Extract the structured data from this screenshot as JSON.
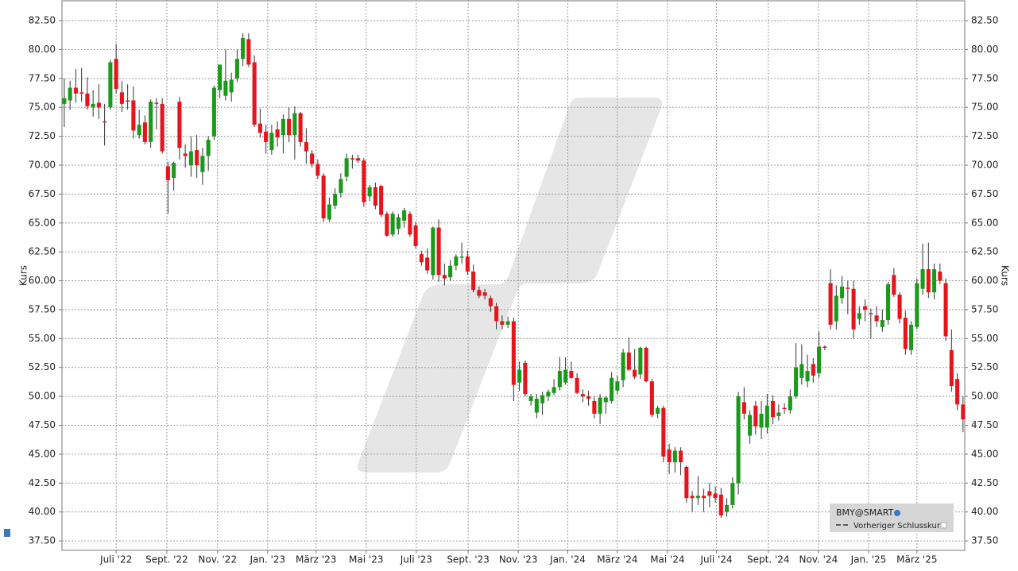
{
  "chart_data": {
    "type": "candlestick",
    "y_axis_label": "Kurs",
    "legend": [
      "BMY@SMART",
      "Vorheriger Schlusskurs"
    ],
    "up_color": "#1a9a1a",
    "down_color": "#e8141c",
    "grid": true,
    "xlim": [
      -0.4,
      156.3
    ],
    "ylim": [
      36.68,
      84.29
    ],
    "xticks": [
      {
        "value": 9.0,
        "label": "Juli '22"
      },
      {
        "value": 17.8,
        "label": "Sept. '22"
      },
      {
        "value": 26.6,
        "label": "Nov. '22"
      },
      {
        "value": 35.3,
        "label": "Jan. '23"
      },
      {
        "value": 43.7,
        "label": "März '23"
      },
      {
        "value": 52.4,
        "label": "Mai '23"
      },
      {
        "value": 61.1,
        "label": "Juli '23"
      },
      {
        "value": 70.1,
        "label": "Sept. '23"
      },
      {
        "value": 78.8,
        "label": "Nov. '23"
      },
      {
        "value": 87.4,
        "label": "Jan. '24"
      },
      {
        "value": 96.0,
        "label": "März '24"
      },
      {
        "value": 104.7,
        "label": "Mai '24"
      },
      {
        "value": 113.2,
        "label": "Juli '24"
      },
      {
        "value": 122.2,
        "label": "Sept. '24"
      },
      {
        "value": 130.9,
        "label": "Nov. '24"
      },
      {
        "value": 139.6,
        "label": "Jan. '25"
      },
      {
        "value": 148.0,
        "label": "März '25"
      }
    ],
    "yticks": [
      {
        "value": 37.5,
        "label": "37.50"
      },
      {
        "value": 40,
        "label": "40.00"
      },
      {
        "value": 42.5,
        "label": "42.50"
      },
      {
        "value": 45,
        "label": "45.00"
      },
      {
        "value": 47.5,
        "label": "47.50"
      },
      {
        "value": 50,
        "label": "50.00"
      },
      {
        "value": 52.5,
        "label": "52.50"
      },
      {
        "value": 55,
        "label": "55.00"
      },
      {
        "value": 57.5,
        "label": "57.50"
      },
      {
        "value": 60,
        "label": "60.00"
      },
      {
        "value": 62.5,
        "label": "62.50"
      },
      {
        "value": 65,
        "label": "65.00"
      },
      {
        "value": 67.5,
        "label": "67.50"
      },
      {
        "value": 70,
        "label": "70.00"
      },
      {
        "value": 72.5,
        "label": "72.50"
      },
      {
        "value": 75,
        "label": "75.00"
      },
      {
        "value": 77.5,
        "label": "77.50"
      },
      {
        "value": 80,
        "label": "80.00"
      },
      {
        "value": 82.5,
        "label": "82.50"
      }
    ],
    "candles": [
      [
        75.3,
        77.5,
        73.3,
        75.8
      ],
      [
        75.6,
        77.3,
        74.8,
        76.7
      ],
      [
        76.7,
        78.3,
        75.4,
        76.2
      ],
      [
        76.3,
        78.4,
        75.5,
        76.2
      ],
      [
        76.2,
        77.6,
        74.8,
        75.1
      ],
      [
        75.0,
        76.5,
        74.2,
        75.3
      ],
      [
        75.4,
        77.0,
        74.0,
        75.0
      ],
      [
        73.8,
        75.3,
        71.7,
        73.7
      ],
      [
        75.0,
        79.1,
        74.8,
        78.9
      ],
      [
        79.2,
        80.5,
        76.2,
        76.6
      ],
      [
        76.3,
        77.3,
        74.6,
        75.3
      ],
      [
        75.6,
        77.0,
        74.8,
        75.5
      ],
      [
        75.6,
        76.8,
        72.3,
        73.0
      ],
      [
        72.6,
        74.8,
        72.3,
        73.5
      ],
      [
        73.7,
        74.3,
        71.8,
        72.0
      ],
      [
        72.0,
        75.7,
        71.5,
        75.5
      ],
      [
        75.4,
        75.8,
        73.1,
        75.3
      ],
      [
        75.3,
        75.8,
        71.0,
        71.2
      ],
      [
        69.9,
        70.3,
        65.8,
        68.7
      ],
      [
        68.9,
        70.3,
        67.8,
        70.2
      ],
      [
        75.5,
        75.9,
        70.5,
        71.5
      ],
      [
        71.0,
        71.8,
        69.8,
        70.8
      ],
      [
        70.0,
        72.5,
        69.0,
        71.2
      ],
      [
        71.3,
        72.6,
        68.9,
        70.0
      ],
      [
        69.4,
        71.5,
        68.3,
        70.8
      ],
      [
        70.8,
        72.5,
        69.5,
        72.2
      ],
      [
        72.5,
        76.9,
        72.2,
        76.7
      ],
      [
        76.5,
        78.7,
        75.8,
        78.7
      ],
      [
        76.0,
        80.0,
        75.6,
        77.3
      ],
      [
        76.3,
        78.0,
        75.5,
        77.4
      ],
      [
        77.5,
        80.0,
        77.2,
        79.2
      ],
      [
        79.2,
        81.4,
        78.6,
        81.0
      ],
      [
        80.9,
        81.4,
        78.5,
        78.7
      ],
      [
        78.9,
        79.5,
        73.3,
        73.5
      ],
      [
        73.6,
        74.9,
        72.4,
        72.8
      ],
      [
        72.9,
        73.5,
        71.0,
        72.0
      ],
      [
        71.3,
        73.5,
        70.9,
        72.8
      ],
      [
        73.1,
        73.8,
        71.6,
        72.4
      ],
      [
        72.6,
        74.4,
        71.0,
        74.0
      ],
      [
        74.0,
        75.0,
        72.0,
        72.6
      ],
      [
        72.6,
        75.1,
        70.5,
        74.5
      ],
      [
        74.5,
        74.6,
        71.6,
        72.0
      ],
      [
        72.0,
        73.2,
        70.1,
        71.2
      ],
      [
        71.0,
        71.3,
        69.8,
        70.1
      ],
      [
        70.1,
        70.5,
        68.8,
        69.1
      ],
      [
        69.1,
        69.3,
        65.1,
        65.4
      ],
      [
        65.3,
        67.2,
        65.1,
        66.6
      ],
      [
        66.5,
        68.0,
        66.2,
        67.5
      ],
      [
        67.6,
        69.3,
        67.2,
        68.8
      ],
      [
        69.0,
        71.0,
        68.6,
        70.6
      ],
      [
        70.6,
        70.9,
        69.7,
        70.5
      ],
      [
        70.6,
        70.9,
        70.2,
        70.4
      ],
      [
        70.4,
        70.6,
        66.4,
        66.8
      ],
      [
        67.3,
        68.3,
        66.9,
        68.1
      ],
      [
        68.1,
        68.5,
        66.2,
        66.5
      ],
      [
        68.2,
        68.3,
        65.5,
        65.7
      ],
      [
        65.8,
        66.0,
        63.8,
        63.9
      ],
      [
        64.0,
        66.0,
        63.8,
        65.8
      ],
      [
        64.5,
        65.8,
        64.0,
        65.5
      ],
      [
        65.2,
        66.3,
        64.6,
        66.1
      ],
      [
        65.8,
        66.0,
        63.8,
        64.0
      ],
      [
        64.8,
        65.1,
        62.8,
        63.0
      ],
      [
        62.3,
        62.6,
        61.3,
        61.6
      ],
      [
        62.0,
        62.8,
        60.6,
        60.9
      ],
      [
        60.5,
        64.7,
        60.1,
        64.6
      ],
      [
        64.6,
        65.3,
        59.9,
        60.5
      ],
      [
        60.5,
        61.5,
        59.6,
        60.2
      ],
      [
        60.3,
        61.8,
        60.0,
        61.3
      ],
      [
        61.3,
        62.3,
        60.9,
        62.1
      ],
      [
        62.0,
        63.3,
        61.5,
        62.1
      ],
      [
        62.1,
        62.6,
        60.5,
        60.8
      ],
      [
        60.8,
        61.4,
        59.0,
        59.2
      ],
      [
        59.2,
        59.5,
        58.5,
        58.7
      ],
      [
        59.0,
        59.3,
        58.4,
        58.7
      ],
      [
        58.5,
        58.7,
        57.3,
        57.8
      ],
      [
        57.8,
        58.1,
        55.8,
        56.5
      ],
      [
        56.5,
        57.0,
        55.8,
        56.2
      ],
      [
        56.2,
        56.9,
        55.9,
        56.5
      ],
      [
        56.5,
        56.8,
        49.6,
        51.0
      ],
      [
        51.2,
        53.0,
        50.5,
        52.3
      ],
      [
        52.9,
        53.1,
        50.0,
        50.2
      ],
      [
        49.6,
        50.2,
        49.2,
        50.0
      ],
      [
        48.6,
        50.2,
        48.1,
        49.8
      ],
      [
        49.4,
        50.4,
        48.4,
        50.1
      ],
      [
        50.0,
        50.6,
        49.6,
        50.4
      ],
      [
        50.3,
        51.5,
        50.1,
        50.8
      ],
      [
        50.8,
        53.4,
        50.5,
        52.2
      ],
      [
        51.2,
        53.4,
        51.0,
        52.3
      ],
      [
        52.2,
        53.0,
        51.5,
        51.6
      ],
      [
        51.6,
        52.0,
        50.2,
        50.3
      ],
      [
        50.2,
        50.6,
        49.5,
        50.0
      ],
      [
        50.0,
        50.5,
        49.2,
        49.8
      ],
      [
        49.6,
        50.0,
        48.1,
        48.5
      ],
      [
        48.5,
        50.2,
        47.6,
        49.9
      ],
      [
        49.5,
        50.0,
        48.5,
        49.9
      ],
      [
        49.6,
        52.1,
        49.4,
        51.6
      ],
      [
        50.5,
        51.8,
        50.2,
        51.3
      ],
      [
        51.4,
        54.1,
        50.8,
        53.8
      ],
      [
        53.8,
        55.1,
        52.2,
        52.3
      ],
      [
        52.3,
        54.1,
        51.5,
        51.7
      ],
      [
        51.9,
        54.3,
        51.5,
        54.2
      ],
      [
        54.2,
        54.3,
        51.2,
        51.3
      ],
      [
        51.3,
        51.5,
        48.2,
        48.4
      ],
      [
        48.5,
        49.2,
        48.1,
        49.0
      ],
      [
        49.0,
        49.2,
        44.3,
        44.8
      ],
      [
        45.4,
        45.9,
        43.3,
        44.3
      ],
      [
        44.3,
        45.6,
        43.4,
        45.3
      ],
      [
        45.3,
        45.6,
        43.2,
        44.3
      ],
      [
        43.9,
        44.0,
        40.8,
        41.2
      ],
      [
        41.4,
        41.8,
        40.0,
        41.2
      ],
      [
        41.2,
        43.1,
        40.6,
        41.4
      ],
      [
        41.4,
        42.0,
        40.0,
        41.2
      ],
      [
        41.8,
        42.5,
        40.4,
        41.4
      ],
      [
        41.6,
        42.2,
        40.8,
        41.2
      ],
      [
        41.5,
        42.1,
        39.5,
        39.7
      ],
      [
        40.0,
        41.2,
        39.6,
        40.6
      ],
      [
        40.6,
        43.0,
        40.3,
        42.5
      ],
      [
        42.5,
        50.4,
        41.5,
        50.0
      ],
      [
        49.5,
        50.8,
        48.0,
        48.5
      ],
      [
        46.6,
        48.8,
        45.9,
        48.4
      ],
      [
        49.2,
        49.6,
        46.7,
        47.4
      ],
      [
        47.3,
        49.6,
        46.3,
        48.5
      ],
      [
        47.3,
        50.2,
        46.8,
        49.2
      ],
      [
        49.6,
        50.1,
        47.6,
        48.2
      ],
      [
        48.3,
        49.3,
        47.9,
        48.6
      ],
      [
        49.0,
        49.4,
        48.5,
        48.9
      ],
      [
        48.8,
        50.6,
        48.5,
        50.0
      ],
      [
        50.0,
        54.6,
        49.8,
        52.5
      ],
      [
        51.6,
        54.5,
        51.0,
        52.8
      ],
      [
        51.3,
        53.6,
        50.8,
        52.2
      ],
      [
        52.8,
        53.3,
        51.2,
        51.8
      ],
      [
        52.0,
        55.6,
        51.6,
        54.3
      ],
      [
        54.3,
        54.4,
        54.0,
        54.2
      ],
      [
        59.8,
        61.0,
        55.8,
        56.2
      ],
      [
        56.5,
        59.6,
        55.8,
        58.7
      ],
      [
        58.5,
        60.4,
        58.0,
        59.5
      ],
      [
        59.4,
        60.0,
        57.1,
        59.3
      ],
      [
        59.3,
        60.0,
        55.0,
        55.8
      ],
      [
        56.7,
        57.8,
        56.2,
        57.2
      ],
      [
        57.8,
        58.4,
        56.5,
        57.5
      ],
      [
        57.2,
        57.6,
        55.0,
        57.1
      ],
      [
        57.0,
        57.8,
        56.0,
        56.5
      ],
      [
        56.0,
        57.5,
        55.6,
        56.6
      ],
      [
        56.6,
        59.9,
        56.2,
        59.7
      ],
      [
        60.5,
        61.1,
        58.6,
        58.8
      ],
      [
        58.8,
        59.0,
        56.3,
        56.7
      ],
      [
        56.8,
        57.4,
        53.6,
        54.1
      ],
      [
        54.0,
        56.5,
        53.6,
        56.2
      ],
      [
        56.0,
        60.2,
        55.8,
        59.8
      ],
      [
        59.3,
        63.2,
        58.8,
        61.0
      ],
      [
        61.0,
        63.3,
        58.5,
        59.0
      ],
      [
        59.0,
        61.5,
        58.4,
        61.0
      ],
      [
        60.8,
        61.5,
        59.7,
        60.0
      ],
      [
        59.8,
        60.2,
        54.8,
        55.2
      ],
      [
        54.0,
        55.8,
        50.4,
        50.9
      ],
      [
        51.5,
        52.0,
        48.8,
        49.3
      ],
      [
        49.3,
        50.0,
        46.9,
        48.0
      ]
    ]
  }
}
